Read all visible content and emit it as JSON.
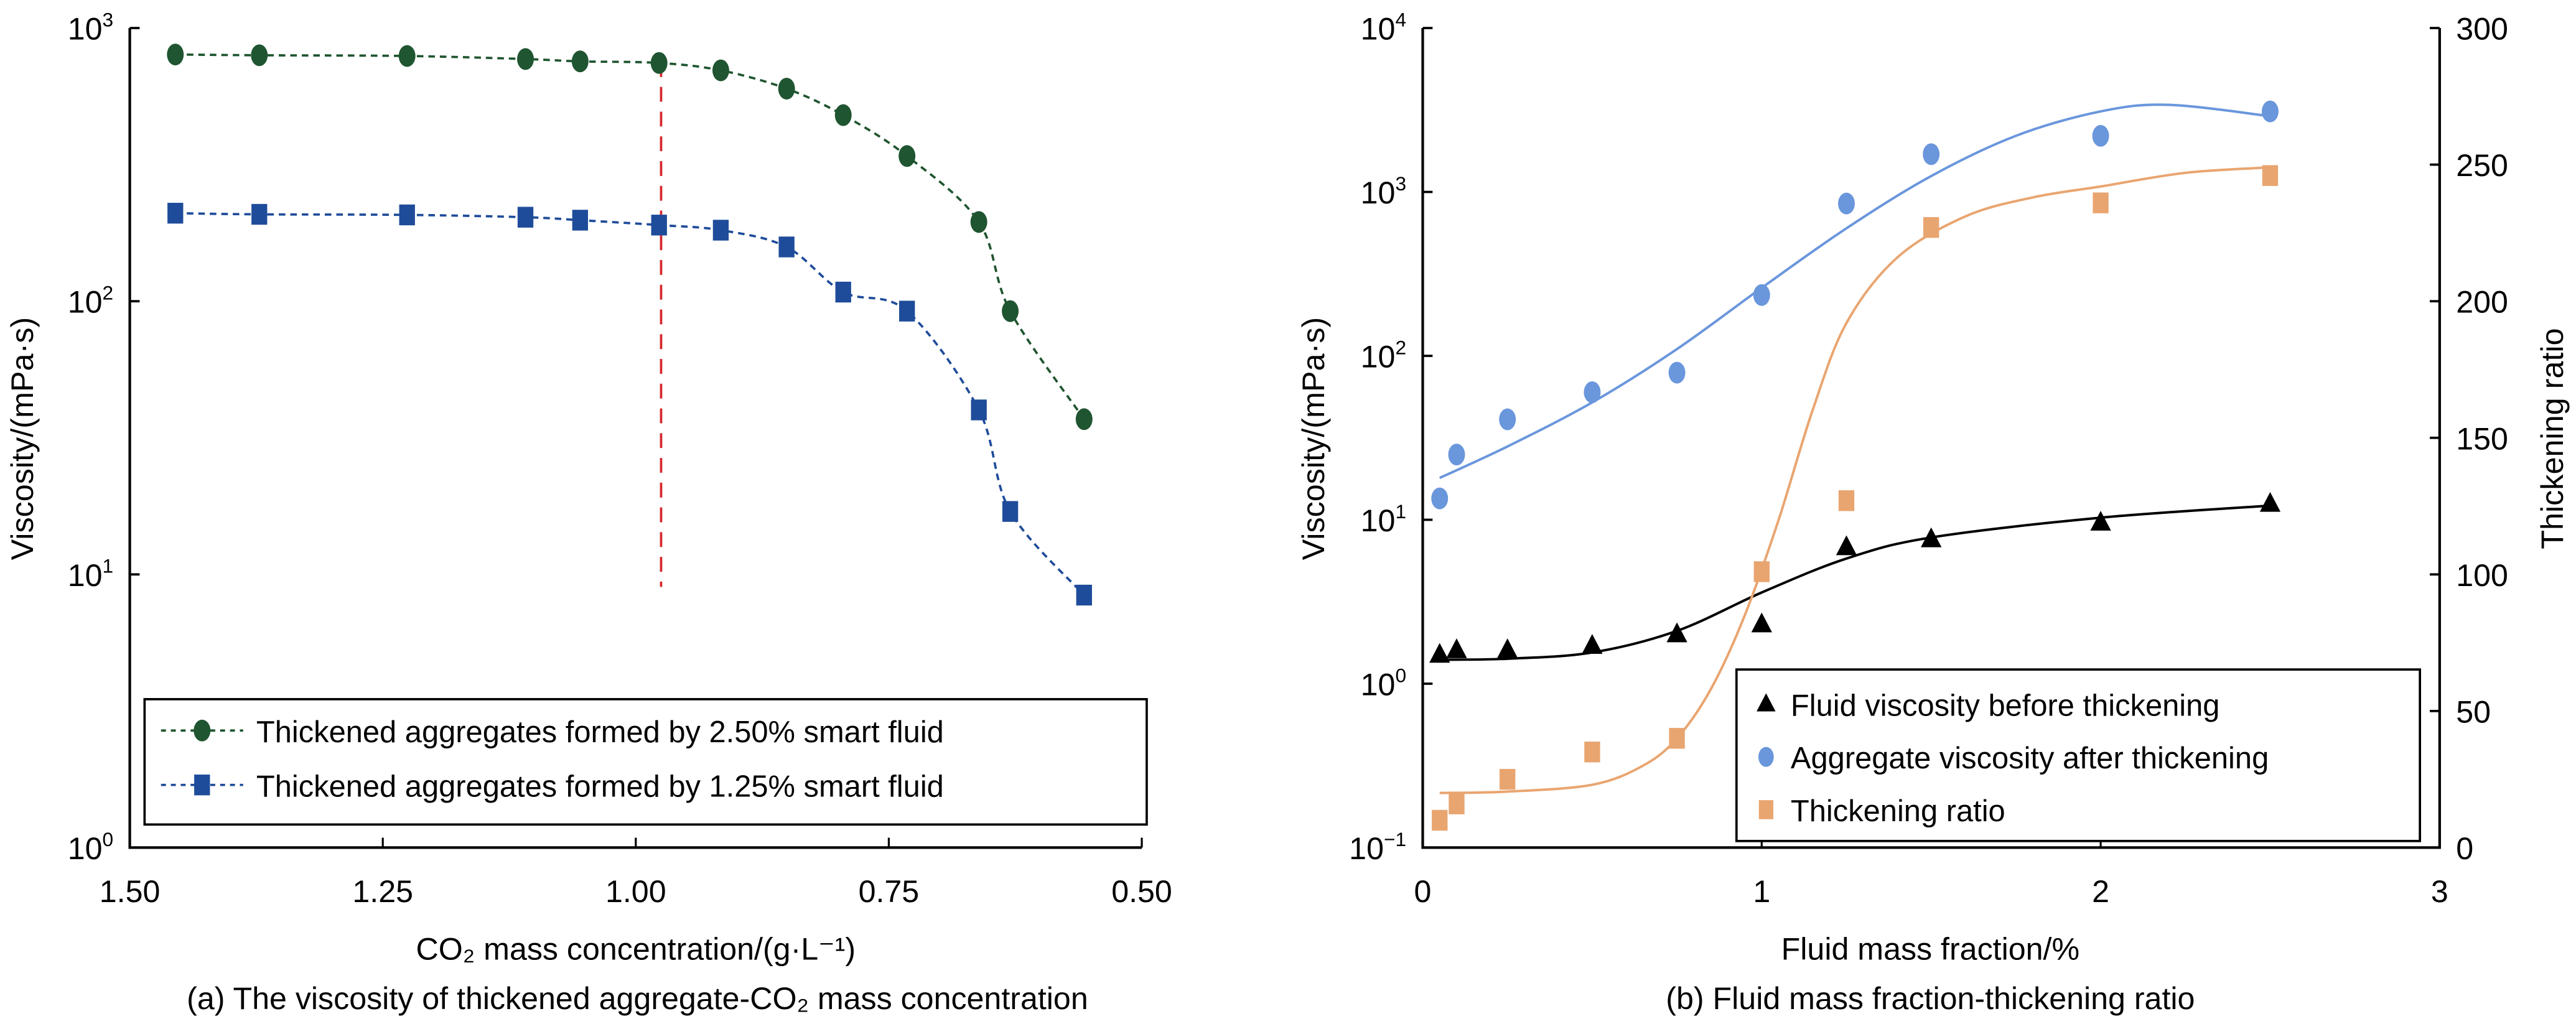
{
  "chart_data": [
    {
      "type": "line",
      "panel_caption": "(a) The viscosity of thickened aggregate-CO₂ mass concentration",
      "xlabel": "CO₂ mass concentration/(g·L⁻¹)",
      "ylabel": "Viscosity/(mPa·s)",
      "x_scale": "linear",
      "x_reversed": true,
      "xlim": [
        1.5,
        0.5
      ],
      "x_ticks": [
        1.5,
        1.25,
        1.0,
        0.75,
        0.5
      ],
      "x_tick_labels": [
        "1.50",
        "1.25",
        "1.00",
        "0.75",
        "0.50"
      ],
      "y_scale": "log",
      "ylim": [
        1,
        1000
      ],
      "y_ticks": [
        1,
        10,
        100,
        1000
      ],
      "y_tick_labels": [
        {
          "base": "10",
          "exp": "0"
        },
        {
          "base": "10",
          "exp": "1"
        },
        {
          "base": "10",
          "exp": "2"
        },
        {
          "base": "10",
          "exp": "3"
        }
      ],
      "grid": false,
      "legend_position": "bottom",
      "reference_line": {
        "x": 0.975,
        "y_from": 9,
        "y_to": 750,
        "color": "#d7262b",
        "style": "dashed"
      },
      "series": [
        {
          "name": "Thickened aggregates formed by 2.50% smart fluid",
          "marker": "circle",
          "line": "dotted",
          "color": "#1f5530",
          "x": [
            1.455,
            1.372,
            1.226,
            1.109,
            1.055,
            0.977,
            0.916,
            0.851,
            0.795,
            0.732,
            0.661,
            0.63,
            0.557
          ],
          "y": [
            800,
            795,
            790,
            770,
            755,
            745,
            700,
            600,
            480,
            340,
            195,
            92,
            37
          ]
        },
        {
          "name": "Thickened aggregates formed by 1.25% smart fluid",
          "marker": "square",
          "line": "dotted",
          "color": "#1f4c9a",
          "x": [
            1.455,
            1.372,
            1.226,
            1.109,
            1.055,
            0.977,
            0.916,
            0.851,
            0.795,
            0.732,
            0.661,
            0.63,
            0.557
          ],
          "y": [
            210,
            208,
            207,
            203,
            198,
            190,
            182,
            158,
            108,
            92,
            40,
            17,
            8.4
          ]
        }
      ]
    },
    {
      "type": "scatter",
      "panel_caption": "(b) Fluid mass fraction-thickening ratio",
      "xlabel": "Fluid mass fraction/%",
      "ylabel": "Viscosity/(mPa·s)",
      "y2label": "Thickening ratio",
      "x_scale": "linear",
      "xlim": [
        0,
        3
      ],
      "x_ticks": [
        0,
        1,
        2,
        3
      ],
      "x_tick_labels": [
        "0",
        "1",
        "2",
        "3"
      ],
      "y_scale": "log",
      "ylim": [
        0.1,
        10000
      ],
      "y_ticks": [
        0.1,
        1,
        10,
        100,
        1000,
        10000
      ],
      "y_tick_labels": [
        {
          "base": "10",
          "exp": "−1"
        },
        {
          "base": "10",
          "exp": "0"
        },
        {
          "base": "10",
          "exp": "1"
        },
        {
          "base": "10",
          "exp": "2"
        },
        {
          "base": "10",
          "exp": "3"
        },
        {
          "base": "10",
          "exp": "4"
        }
      ],
      "y2_scale": "linear",
      "y2lim": [
        0,
        300
      ],
      "y2_ticks": [
        0,
        50,
        100,
        150,
        200,
        250,
        300
      ],
      "y2_tick_labels": [
        "0",
        "50",
        "100",
        "150",
        "200",
        "250",
        "300"
      ],
      "grid": false,
      "legend_position": "bottom-right",
      "series": [
        {
          "name": "Fluid viscosity before thickening",
          "marker": "triangle",
          "color": "#000000",
          "axis": "left",
          "x": [
            0.05,
            0.1,
            0.25,
            0.5,
            0.75,
            1.0,
            1.25,
            1.5,
            2.0,
            2.5
          ],
          "y": [
            1.5,
            1.6,
            1.6,
            1.7,
            2.0,
            2.3,
            6.8,
            7.6,
            9.6,
            12.5
          ],
          "fit_curve": {
            "color": "#000000",
            "x": [
              0.05,
              0.25,
              0.5,
              0.75,
              1.0,
              1.25,
              1.5,
              2.0,
              2.5
            ],
            "y": [
              1.4,
              1.42,
              1.55,
              2.1,
              3.6,
              5.8,
              7.8,
              10.3,
              12.2
            ]
          }
        },
        {
          "name": "Aggregate viscosity after thickening",
          "marker": "circle",
          "color": "#6a96dc",
          "axis": "left",
          "x": [
            0.05,
            0.1,
            0.25,
            0.5,
            0.75,
            1.0,
            1.25,
            1.5,
            2.0,
            2.5
          ],
          "y": [
            13.5,
            25,
            41,
            60,
            79,
            235,
            850,
            1700,
            2200,
            3100
          ],
          "fit_curve": {
            "color": "#6a96dc",
            "x": [
              0.05,
              0.25,
              0.5,
              0.75,
              1.0,
              1.25,
              1.5,
              1.75,
              2.0,
              2.2,
              2.5
            ],
            "y": [
              18,
              28,
              52,
              110,
              260,
              600,
              1250,
              2200,
              3100,
              3400,
              2900
            ]
          }
        },
        {
          "name": "Thickening ratio",
          "marker": "square",
          "color": "#e9a570",
          "axis": "right",
          "x": [
            0.05,
            0.1,
            0.25,
            0.5,
            0.75,
            1.0,
            1.25,
            1.5,
            2.0,
            2.5
          ],
          "y": [
            10,
            16,
            25,
            35,
            40,
            101,
            127,
            227,
            236,
            246
          ],
          "fit_curve": {
            "color": "#e9a570",
            "x": [
              0.05,
              0.25,
              0.5,
              0.65,
              0.75,
              0.85,
              0.95,
              1.05,
              1.15,
              1.25,
              1.4,
              1.6,
              1.8,
              2.0,
              2.25,
              2.5
            ],
            "y": [
              20,
              20.5,
              23,
              30,
              40,
              58,
              85,
              120,
              160,
              192,
              216,
              231,
              238,
              242,
              247,
              249
            ]
          }
        }
      ]
    }
  ]
}
